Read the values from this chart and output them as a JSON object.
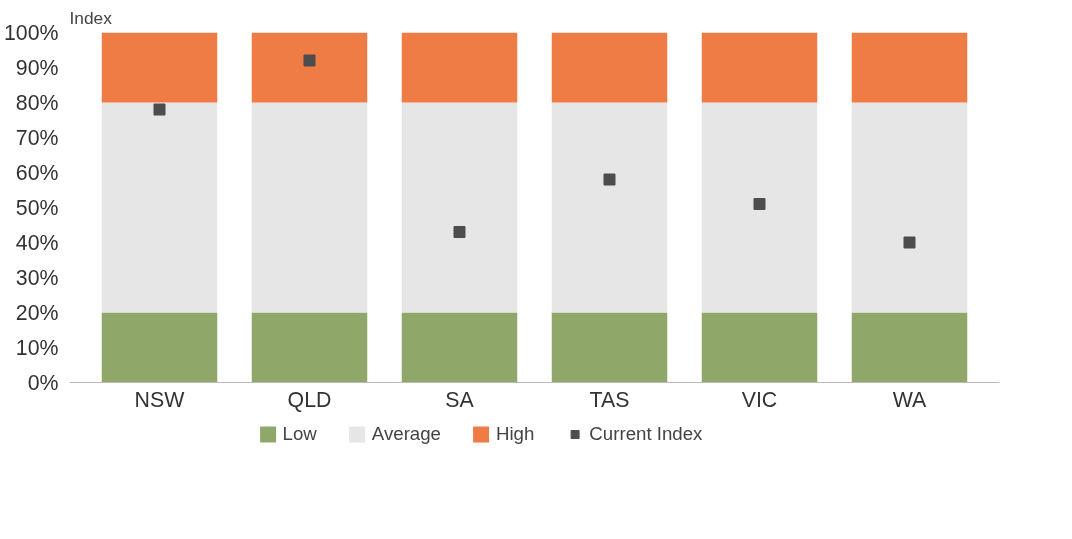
{
  "chart_data": {
    "type": "bar",
    "stacked": true,
    "ylabel": "Index",
    "categories": [
      "NSW",
      "QLD",
      "SA",
      "TAS",
      "VIC",
      "WA"
    ],
    "series": [
      {
        "name": "Low",
        "color": "#8fa86a",
        "values": [
          20,
          20,
          20,
          20,
          20,
          20
        ]
      },
      {
        "name": "Average",
        "color": "#e6e6e6",
        "values": [
          60,
          60,
          60,
          60,
          60,
          60
        ]
      },
      {
        "name": "High",
        "color": "#f07c45",
        "values": [
          20,
          20,
          20,
          20,
          20,
          20
        ]
      },
      {
        "name": "Current Index",
        "type": "scatter",
        "marker": "square",
        "color": "#4d4d4d",
        "values": [
          78,
          92,
          43,
          58,
          51,
          40
        ]
      }
    ],
    "ylim": [
      0,
      100
    ],
    "yticks": [
      {
        "value": 0,
        "label": "0%"
      },
      {
        "value": 10,
        "label": "10%"
      },
      {
        "value": 20,
        "label": "20%"
      },
      {
        "value": 30,
        "label": "30%"
      },
      {
        "value": 40,
        "label": "40%"
      },
      {
        "value": 50,
        "label": "50%"
      },
      {
        "value": 60,
        "label": "60%"
      },
      {
        "value": 70,
        "label": "70%"
      },
      {
        "value": 80,
        "label": "80%"
      },
      {
        "value": 90,
        "label": "90%"
      },
      {
        "value": 100,
        "label": "100%"
      }
    ],
    "grid": false,
    "legend": "bottom"
  }
}
